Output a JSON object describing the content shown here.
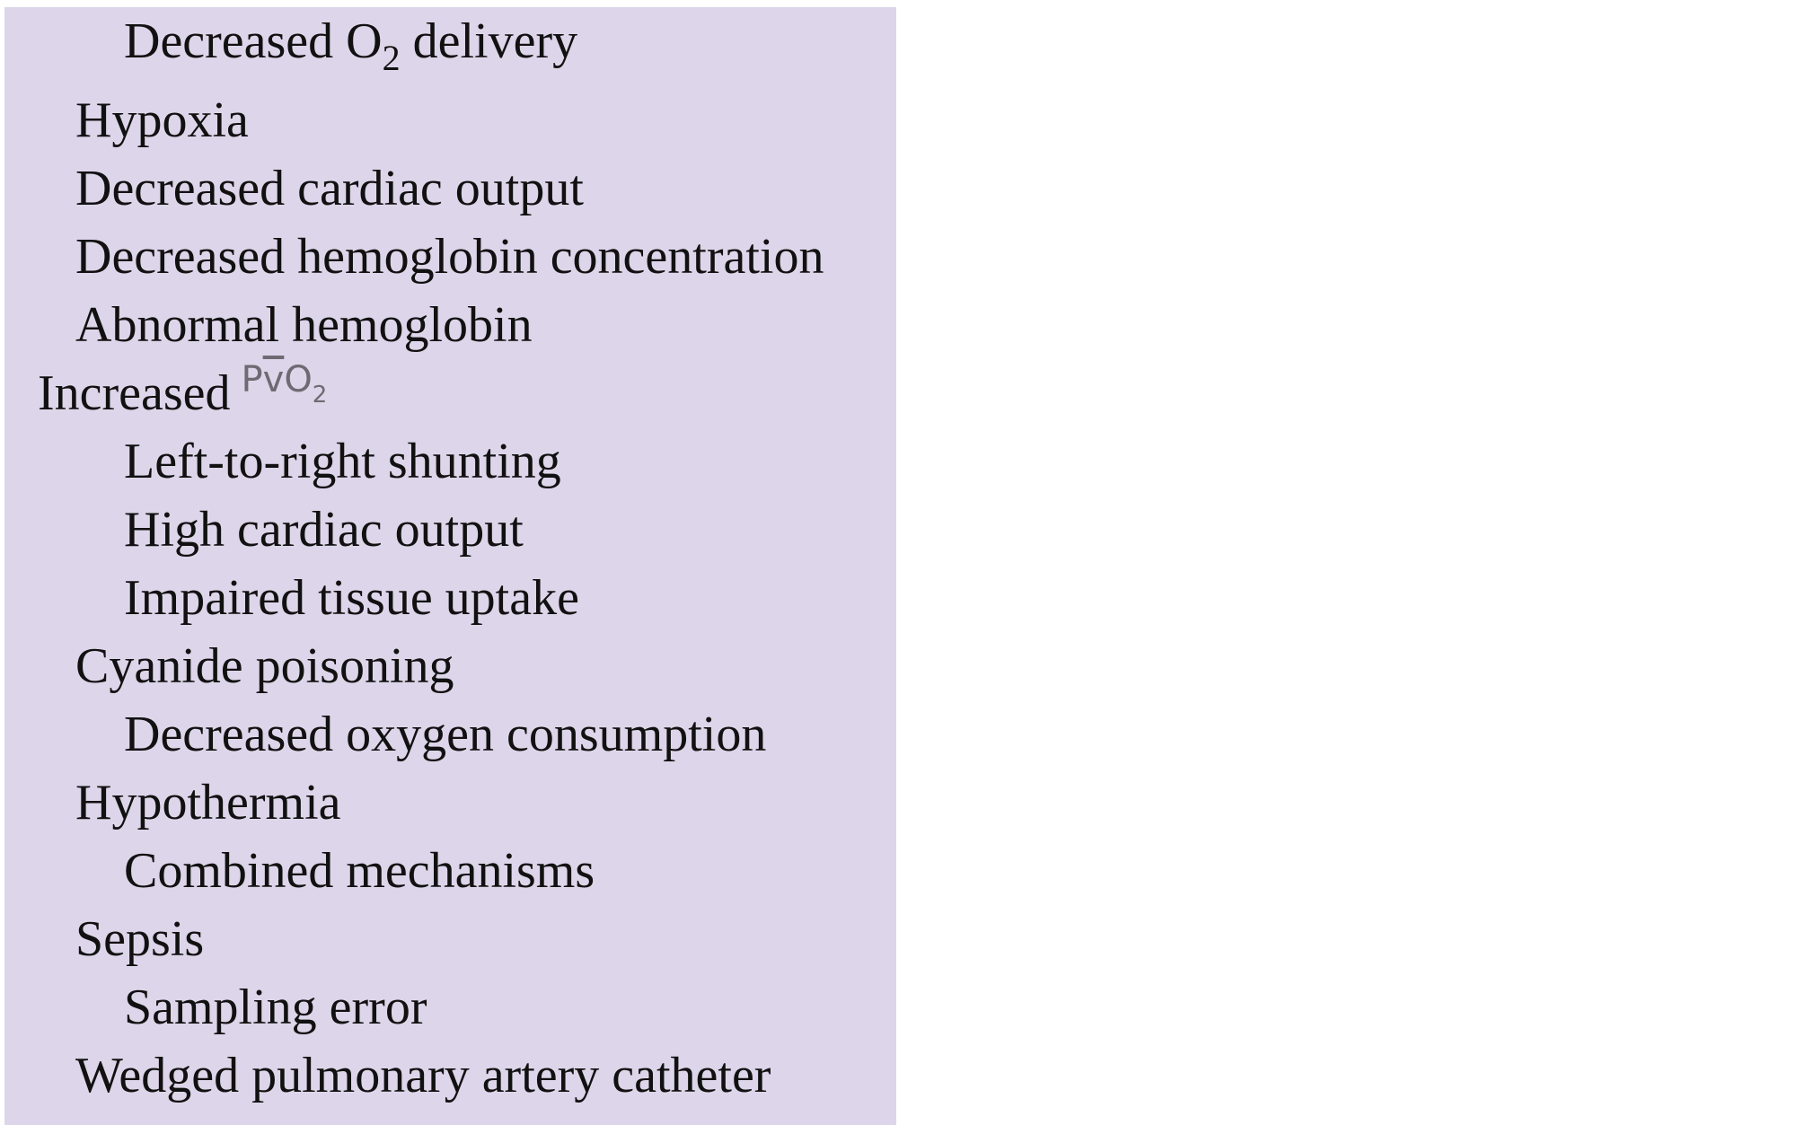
{
  "panel": {
    "background": "#ddd5e9"
  },
  "rows": [
    {
      "text": "Decreased O",
      "sub": "2",
      "after": " delivery",
      "level": 2
    },
    {
      "text": "Hypoxia",
      "level": 1
    },
    {
      "text": "Decreased cardiac output",
      "level": 1
    },
    {
      "text": "Decreased hemoglobin concentration",
      "level": 1
    },
    {
      "text": "Abnormal hemoglobin",
      "level": 1
    },
    {
      "text": "Increased",
      "symbol": "PvO",
      "symbol_sub": "2",
      "level": 0
    },
    {
      "text": "Left-to-right shunting",
      "level": 2
    },
    {
      "text": "High cardiac output",
      "level": 2
    },
    {
      "text": "Impaired tissue uptake",
      "level": 2
    },
    {
      "text": "Cyanide poisoning",
      "level": 1
    },
    {
      "text": "Decreased oxygen consumption",
      "level": 2
    },
    {
      "text": "Hypothermia",
      "level": 1
    },
    {
      "text": "Combined mechanisms",
      "level": 2
    },
    {
      "text": "Sepsis",
      "level": 1
    },
    {
      "text": "Sampling error",
      "level": 2
    },
    {
      "text": "Wedged pulmonary artery catheter",
      "level": 1
    }
  ]
}
